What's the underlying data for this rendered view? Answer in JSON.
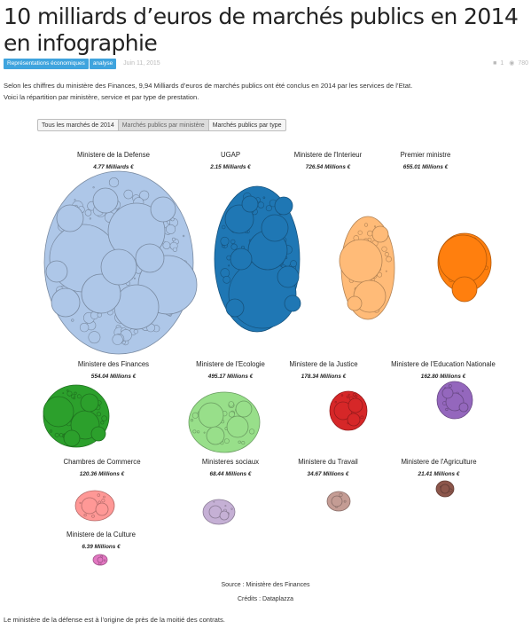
{
  "article": {
    "title": "10 milliards d’euros de marchés publics en 2014 en infographie",
    "tags": [
      "Représentations économiques",
      "analyse"
    ],
    "date": "Juin 11, 2015",
    "comments": "1",
    "views": "780",
    "intro_line1": "Selon les chiffres du ministère des Finances, 9,94 Milliards d’euros de marchés publics ont été conclus en 2014 par les services de l’Etat.",
    "intro_line2": "Voici la répartition par ministère, service et par type de prestation.",
    "closing_text": "Le ministère de la défense est à l’origine de près de la moitié des contrats."
  },
  "tabs": [
    {
      "label": "Tous les marchés de 2014",
      "active": false
    },
    {
      "label": "Marchés publics par ministère",
      "active": true
    },
    {
      "label": "Marchés publics par type",
      "active": false
    }
  ],
  "clusters": [
    {
      "name": "Ministere de la Defense",
      "value": "4.77 Milliards €",
      "color": "#aec7e8"
    },
    {
      "name": "UGAP",
      "value": "2.15 Milliards €",
      "color": "#1f77b4"
    },
    {
      "name": "Ministere de l'Interieur",
      "value": "726.54 Millions €",
      "color": "#ffbb78"
    },
    {
      "name": "Premier ministre",
      "value": "655.01 Millions €",
      "color": "#ff7f0e"
    },
    {
      "name": "Ministere des Finances",
      "value": "554.04 Millions €",
      "color": "#2ca02c"
    },
    {
      "name": "Ministere de l'Ecologie",
      "value": "495.17 Millions €",
      "color": "#98df8a"
    },
    {
      "name": "Ministere de la Justice",
      "value": "178.34 Millions €",
      "color": "#d62728"
    },
    {
      "name": "Ministere de l'Education Nationale",
      "value": "162.80 Millions €",
      "color": "#9467bd"
    },
    {
      "name": "Chambres de Commerce",
      "value": "120.36 Millions €",
      "color": "#ff9896"
    },
    {
      "name": "Ministeres sociaux",
      "value": "68.44 Millions €",
      "color": "#c5b0d5"
    },
    {
      "name": "Ministere du Travail",
      "value": "34.67 Millions €",
      "color": "#c49c94"
    },
    {
      "name": "Ministere de l'Agriculture",
      "value": "21.41 Millions €",
      "color": "#8c564b"
    },
    {
      "name": "Ministere de la Culture",
      "value": "6.39 Millions €",
      "color": "#e377c2"
    }
  ],
  "source_text": "Source : Ministère des Finances",
  "credits_text": "Crédits : Dataplazza"
}
